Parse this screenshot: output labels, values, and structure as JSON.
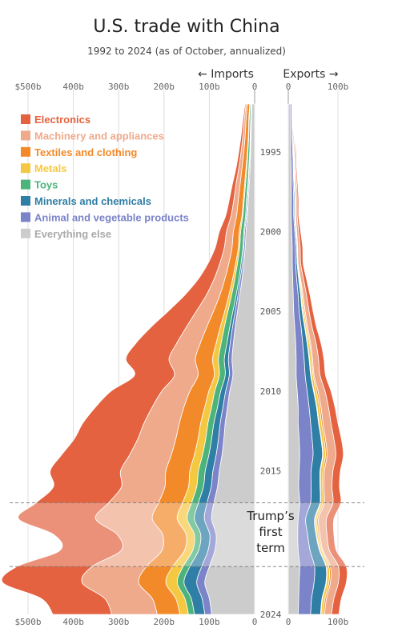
{
  "chart_data": {
    "type": "area",
    "title": "U.S. trade with China",
    "subtitle": "1992 to 2024 (as of October, annualized)",
    "imports_label": "← Imports",
    "exports_label": "Exports →",
    "import_ticks": [
      "$500b",
      "400b",
      "300b",
      "200b",
      "100b",
      "0"
    ],
    "import_tick_values": [
      500,
      400,
      300,
      200,
      100,
      0
    ],
    "export_ticks": [
      "0",
      "100b"
    ],
    "export_tick_values": [
      0,
      100
    ],
    "year_ticks": [
      "1995",
      "2000",
      "2005",
      "2010",
      "2015",
      "2024"
    ],
    "year_tick_values": [
      1995,
      2000,
      2005,
      2010,
      2015,
      2024
    ],
    "annotation": {
      "text": "Trump's first term",
      "start": 2017,
      "end": 2021
    },
    "years": [
      1992,
      1993,
      1994,
      1995,
      1996,
      1997,
      1998,
      1999,
      2000,
      2001,
      2002,
      2003,
      2004,
      2005,
      2006,
      2007,
      2008,
      2009,
      2010,
      2011,
      2012,
      2013,
      2014,
      2015,
      2016,
      2017,
      2018,
      2019,
      2020,
      2021,
      2022,
      2023,
      2024
    ],
    "series": [
      {
        "name": "Everything else",
        "color": "#cccccc",
        "imports": [
          6,
          7,
          8,
          9,
          10,
          12,
          14,
          16,
          19,
          21,
          24,
          28,
          33,
          38,
          43,
          47,
          50,
          48,
          55,
          60,
          65,
          68,
          72,
          78,
          82,
          90,
          95,
          85,
          88,
          100,
          110,
          100,
          95
        ],
        "exports": [
          4,
          4,
          5,
          5,
          6,
          6,
          6,
          6,
          7,
          8,
          8,
          9,
          10,
          11,
          13,
          15,
          16,
          16,
          18,
          20,
          20,
          22,
          23,
          22,
          21,
          23,
          20,
          19,
          20,
          23,
          22,
          21,
          20
        ]
      },
      {
        "name": "Animal and vegetable products",
        "color": "#7b83c9",
        "imports": [
          1,
          1,
          1,
          1,
          2,
          2,
          2,
          2,
          3,
          3,
          3,
          4,
          4,
          5,
          6,
          7,
          8,
          8,
          9,
          10,
          11,
          12,
          13,
          14,
          14,
          15,
          16,
          14,
          15,
          17,
          18,
          16,
          15
        ],
        "exports": [
          3,
          3,
          3,
          4,
          4,
          4,
          5,
          5,
          6,
          6,
          7,
          8,
          10,
          11,
          13,
          14,
          16,
          18,
          20,
          22,
          25,
          26,
          27,
          24,
          25,
          22,
          15,
          20,
          24,
          30,
          30,
          26,
          25
        ]
      },
      {
        "name": "Minerals and chemicals",
        "color": "#2f7ea5",
        "imports": [
          1,
          1,
          1,
          1,
          1,
          1,
          2,
          2,
          2,
          2,
          3,
          3,
          4,
          5,
          6,
          7,
          9,
          9,
          11,
          12,
          14,
          15,
          16,
          17,
          17,
          19,
          22,
          20,
          21,
          26,
          28,
          24,
          23
        ],
        "exports": [
          1,
          1,
          1,
          1,
          1,
          2,
          2,
          2,
          2,
          3,
          3,
          4,
          5,
          6,
          7,
          9,
          10,
          11,
          13,
          15,
          16,
          18,
          19,
          18,
          18,
          19,
          18,
          17,
          19,
          23,
          24,
          21,
          20
        ]
      },
      {
        "name": "Toys",
        "color": "#4cb47a",
        "imports": [
          2,
          3,
          3,
          4,
          4,
          5,
          5,
          6,
          7,
          7,
          8,
          9,
          10,
          11,
          12,
          13,
          13,
          13,
          13,
          13,
          13,
          13,
          14,
          15,
          15,
          15,
          16,
          14,
          13,
          15,
          15,
          14,
          13
        ],
        "exports": [
          0,
          0,
          0,
          0,
          0,
          0,
          0,
          0,
          0,
          0,
          0,
          1,
          1,
          1,
          1,
          1,
          1,
          1,
          1,
          1,
          1,
          1,
          1,
          1,
          1,
          1,
          1,
          1,
          1,
          1,
          1,
          1,
          1
        ]
      },
      {
        "name": "Metals",
        "color": "#f5c842",
        "imports": [
          1,
          1,
          1,
          1,
          2,
          2,
          2,
          2,
          3,
          3,
          4,
          5,
          6,
          7,
          9,
          11,
          13,
          11,
          13,
          15,
          16,
          17,
          18,
          19,
          18,
          20,
          22,
          18,
          18,
          23,
          25,
          20,
          19
        ],
        "exports": [
          0,
          0,
          0,
          1,
          1,
          1,
          1,
          1,
          1,
          1,
          1,
          2,
          2,
          3,
          3,
          4,
          4,
          4,
          5,
          5,
          5,
          5,
          5,
          5,
          4,
          5,
          4,
          4,
          4,
          5,
          5,
          5,
          4
        ]
      },
      {
        "name": "Textiles and clothing",
        "color": "#f38a2a",
        "imports": [
          5,
          6,
          7,
          8,
          9,
          10,
          11,
          12,
          13,
          14,
          15,
          17,
          20,
          25,
          30,
          35,
          38,
          36,
          42,
          46,
          47,
          49,
          51,
          53,
          52,
          53,
          55,
          52,
          50,
          58,
          60,
          52,
          50
        ],
        "exports": [
          0,
          0,
          0,
          1,
          1,
          1,
          1,
          1,
          1,
          1,
          1,
          1,
          2,
          2,
          2,
          2,
          2,
          2,
          3,
          3,
          3,
          3,
          3,
          3,
          3,
          3,
          3,
          3,
          2,
          3,
          3,
          3,
          3
        ]
      },
      {
        "name": "Machinery and appliances",
        "color": "#efaa8c",
        "imports": [
          3,
          4,
          5,
          6,
          7,
          9,
          10,
          12,
          15,
          17,
          20,
          24,
          30,
          38,
          45,
          52,
          58,
          52,
          62,
          70,
          78,
          84,
          92,
          100,
          96,
          110,
          125,
          100,
          90,
          120,
          125,
          105,
          100
        ],
        "exports": [
          1,
          1,
          2,
          2,
          2,
          3,
          3,
          3,
          4,
          5,
          5,
          6,
          7,
          8,
          9,
          11,
          12,
          12,
          14,
          15,
          16,
          17,
          18,
          17,
          16,
          17,
          16,
          14,
          13,
          16,
          16,
          15,
          14
        ]
      },
      {
        "name": "Electronics",
        "color": "#e4623f",
        "imports": [
          2,
          3,
          4,
          5,
          6,
          8,
          10,
          12,
          16,
          20,
          26,
          35,
          48,
          62,
          78,
          90,
          95,
          88,
          112,
          125,
          135,
          140,
          150,
          155,
          150,
          160,
          170,
          140,
          135,
          165,
          175,
          140,
          130
        ],
        "exports": [
          1,
          1,
          1,
          2,
          2,
          2,
          3,
          3,
          4,
          5,
          5,
          6,
          7,
          8,
          9,
          10,
          11,
          11,
          12,
          13,
          14,
          15,
          15,
          15,
          15,
          16,
          15,
          14,
          14,
          16,
          16,
          15,
          15
        ]
      }
    ]
  }
}
